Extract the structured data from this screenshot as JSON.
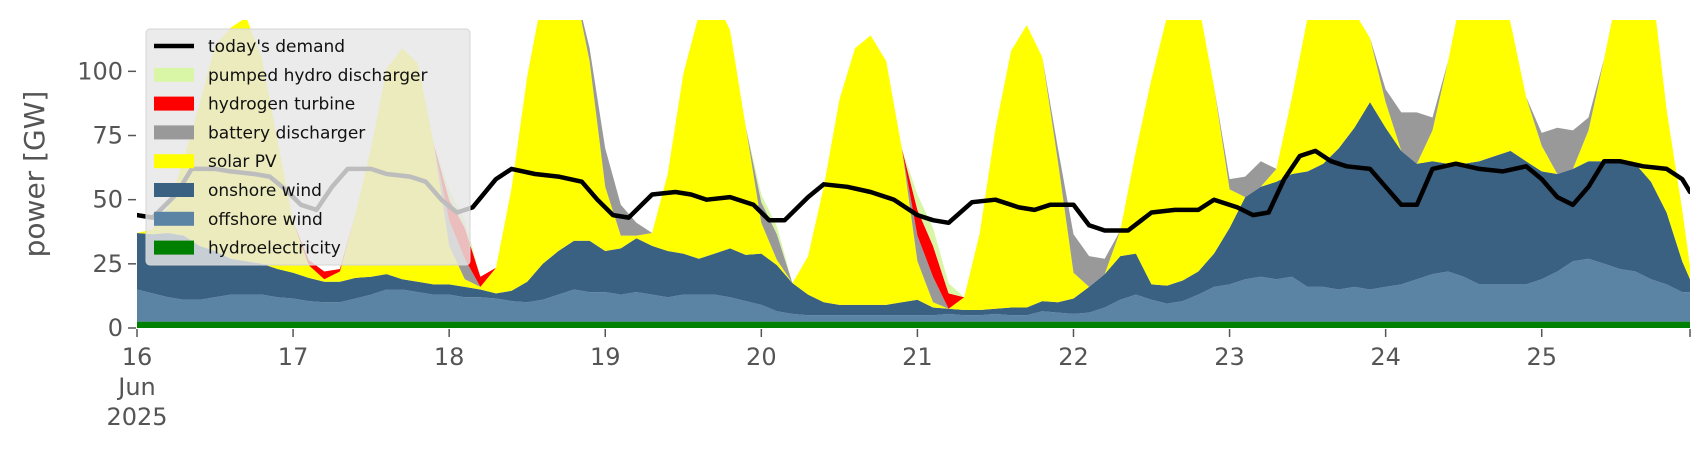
{
  "chart_data": {
    "type": "area",
    "ylabel": "power [GW]",
    "ylim": [
      0,
      120
    ],
    "yticks": [
      0,
      25,
      50,
      75,
      100
    ],
    "xlim": [
      0,
      9.95
    ],
    "x_unit": "days after 2025-06-16 00:00",
    "x_ticks": [
      {
        "pos": 0,
        "lines": [
          "16",
          "Jun",
          "2025"
        ]
      },
      {
        "pos": 1,
        "lines": [
          "17"
        ]
      },
      {
        "pos": 2,
        "lines": [
          "18"
        ]
      },
      {
        "pos": 3,
        "lines": [
          "19"
        ]
      },
      {
        "pos": 4,
        "lines": [
          "20"
        ]
      },
      {
        "pos": 5,
        "lines": [
          "21"
        ]
      },
      {
        "pos": 6,
        "lines": [
          "22"
        ]
      },
      {
        "pos": 7,
        "lines": [
          "23"
        ]
      },
      {
        "pos": 8,
        "lines": [
          "24"
        ]
      },
      {
        "pos": 9,
        "lines": [
          "25"
        ]
      }
    ],
    "grid": false,
    "legend_position": "top-left",
    "legend": [
      {
        "label": "today's demand",
        "kind": "line",
        "color": "#000000"
      },
      {
        "label": "pumped hydro discharger",
        "kind": "patch",
        "color": "#d9f5a6"
      },
      {
        "label": "hydrogen turbine",
        "kind": "patch",
        "color": "#ff0000"
      },
      {
        "label": "battery discharger",
        "kind": "patch",
        "color": "#999999"
      },
      {
        "label": "solar PV",
        "kind": "patch",
        "color": "#ffff00"
      },
      {
        "label": "onshore wind",
        "kind": "patch",
        "color": "#3b6182"
      },
      {
        "label": "offshore wind",
        "kind": "patch",
        "color": "#5b83a3"
      },
      {
        "label": "hydroelectricity",
        "kind": "patch",
        "color": "#008000"
      }
    ],
    "stack_order": [
      "hydroelectricity",
      "offshore wind",
      "onshore wind",
      "solar PV",
      "battery discharger",
      "hydrogen turbine",
      "pumped hydro discharger"
    ],
    "stack_colors": [
      "#008000",
      "#5b83a3",
      "#3b6182",
      "#ffff00",
      "#999999",
      "#ff0000",
      "#d9f5a6"
    ],
    "demand_series": {
      "name": "today's demand",
      "color": "#000000",
      "points": [
        [
          0,
          44
        ],
        [
          0.1,
          43
        ],
        [
          0.25,
          52
        ],
        [
          0.35,
          62
        ],
        [
          0.5,
          62
        ],
        [
          0.6,
          61
        ],
        [
          0.75,
          60
        ],
        [
          0.85,
          59
        ],
        [
          0.95,
          54
        ],
        [
          1.05,
          48
        ],
        [
          1.15,
          46
        ],
        [
          1.25,
          55
        ],
        [
          1.35,
          62
        ],
        [
          1.5,
          62
        ],
        [
          1.6,
          60
        ],
        [
          1.75,
          59
        ],
        [
          1.85,
          57
        ],
        [
          1.95,
          50
        ],
        [
          2.05,
          45
        ],
        [
          2.15,
          47
        ],
        [
          2.3,
          58
        ],
        [
          2.4,
          62
        ],
        [
          2.55,
          60
        ],
        [
          2.7,
          59
        ],
        [
          2.85,
          57
        ],
        [
          2.95,
          50
        ],
        [
          3.05,
          44
        ],
        [
          3.15,
          43
        ],
        [
          3.3,
          52
        ],
        [
          3.45,
          53
        ],
        [
          3.55,
          52
        ],
        [
          3.65,
          50
        ],
        [
          3.8,
          51
        ],
        [
          3.95,
          48
        ],
        [
          4.05,
          42
        ],
        [
          4.15,
          42
        ],
        [
          4.3,
          51
        ],
        [
          4.4,
          56
        ],
        [
          4.55,
          55
        ],
        [
          4.7,
          53
        ],
        [
          4.85,
          50
        ],
        [
          5.0,
          44
        ],
        [
          5.1,
          42
        ],
        [
          5.2,
          41
        ],
        [
          5.35,
          49
        ],
        [
          5.5,
          50
        ],
        [
          5.65,
          47
        ],
        [
          5.75,
          46
        ],
        [
          5.85,
          48
        ],
        [
          6.0,
          48
        ],
        [
          6.1,
          40
        ],
        [
          6.2,
          38
        ],
        [
          6.35,
          38
        ],
        [
          6.5,
          45
        ],
        [
          6.65,
          46
        ],
        [
          6.8,
          46
        ],
        [
          6.9,
          50
        ],
        [
          7.05,
          47
        ],
        [
          7.15,
          44
        ],
        [
          7.25,
          45
        ],
        [
          7.35,
          58
        ],
        [
          7.45,
          67
        ],
        [
          7.55,
          69
        ],
        [
          7.65,
          65
        ],
        [
          7.75,
          63
        ],
        [
          7.9,
          62
        ],
        [
          8.0,
          55
        ],
        [
          8.1,
          48
        ],
        [
          8.2,
          48
        ],
        [
          8.3,
          62
        ],
        [
          8.45,
          64
        ],
        [
          8.6,
          62
        ],
        [
          8.75,
          61
        ],
        [
          8.9,
          63
        ],
        [
          9.0,
          58
        ],
        [
          9.1,
          51
        ],
        [
          9.2,
          48
        ],
        [
          9.3,
          55
        ],
        [
          9.4,
          65
        ],
        [
          9.5,
          65
        ],
        [
          9.65,
          63
        ],
        [
          9.8,
          62
        ],
        [
          9.9,
          58
        ],
        [
          9.95,
          53
        ]
      ]
    },
    "stack_series": {
      "x": [
        0,
        0.1,
        0.2,
        0.3,
        0.4,
        0.5,
        0.6,
        0.7,
        0.8,
        0.9,
        1.0,
        1.1,
        1.2,
        1.3,
        1.4,
        1.5,
        1.6,
        1.7,
        1.8,
        1.9,
        2.0,
        2.1,
        2.2,
        2.3,
        2.4,
        2.5,
        2.6,
        2.7,
        2.8,
        2.9,
        3.0,
        3.1,
        3.2,
        3.3,
        3.4,
        3.5,
        3.6,
        3.7,
        3.8,
        3.9,
        4.0,
        4.1,
        4.2,
        4.3,
        4.4,
        4.5,
        4.6,
        4.7,
        4.8,
        4.9,
        5.0,
        5.1,
        5.2,
        5.3,
        5.4,
        5.5,
        5.6,
        5.7,
        5.8,
        5.9,
        6.0,
        6.1,
        6.2,
        6.3,
        6.4,
        6.5,
        6.6,
        6.7,
        6.8,
        6.9,
        7.0,
        7.1,
        7.2,
        7.3,
        7.4,
        7.5,
        7.6,
        7.7,
        7.8,
        7.9,
        8.0,
        8.1,
        8.2,
        8.3,
        8.4,
        8.5,
        8.6,
        8.7,
        8.8,
        8.9,
        9.0,
        9.1,
        9.2,
        9.3,
        9.4,
        9.5,
        9.6,
        9.7,
        9.8,
        9.9,
        9.95
      ],
      "hydroelectricity": [
        2.5,
        2.5,
        2.5,
        2.5,
        2.5,
        2.5,
        2.5,
        2.5,
        2.5,
        2.5,
        2.5,
        2.5,
        2.5,
        2.5,
        2.5,
        2.5,
        2.5,
        2.5,
        2.5,
        2.5,
        2.5,
        2.5,
        2.5,
        2.5,
        2.5,
        2.5,
        2.5,
        2.5,
        2.5,
        2.5,
        2.5,
        2.5,
        2.5,
        2.5,
        2.5,
        2.5,
        2.5,
        2.5,
        2.5,
        2.5,
        2.5,
        2.5,
        2.5,
        2.5,
        2.5,
        2.5,
        2.5,
        2.5,
        2.5,
        2.5,
        2.5,
        2.5,
        2.5,
        2.5,
        2.5,
        2.5,
        2.5,
        2.5,
        2.5,
        2.5,
        2.5,
        2.5,
        2.5,
        2.5,
        2.5,
        2.5,
        2.5,
        2.5,
        2.5,
        2.5,
        2.5,
        2.5,
        2.5,
        2.5,
        2.5,
        2.5,
        2.5,
        2.5,
        2.5,
        2.5,
        2.5,
        2.5,
        2.5,
        2.5,
        2.5,
        2.5,
        2.5,
        2.5,
        2.5,
        2.5,
        2.5,
        2.5,
        2.5,
        2.5,
        2.5,
        2.5,
        2.5,
        2.5,
        2.5,
        2.5,
        2.5
      ],
      "offshore wind": [
        12.5,
        11,
        9.5,
        8.5,
        8.5,
        9.5,
        10.5,
        10.5,
        10.5,
        9.5,
        9,
        8,
        7.5,
        7.5,
        9,
        10.5,
        12.5,
        12.5,
        11.5,
        10.5,
        10.5,
        9.5,
        9.5,
        9,
        8,
        7.5,
        8.5,
        10.5,
        12.5,
        11.5,
        11.5,
        10.5,
        11.5,
        10.5,
        9.5,
        10.5,
        10.5,
        10.5,
        9.5,
        8,
        6.5,
        4,
        3,
        2.5,
        2.5,
        2.5,
        2.5,
        2.5,
        2.5,
        2.5,
        2.5,
        2.5,
        3,
        2.5,
        2.5,
        3,
        2.5,
        2.5,
        4,
        3.5,
        3,
        3.5,
        5.5,
        8.5,
        10.5,
        8.5,
        7,
        8,
        10.5,
        13.5,
        14.5,
        16.5,
        17.5,
        16.5,
        17.5,
        13.5,
        13.5,
        12.5,
        13.5,
        12.5,
        13.5,
        14.5,
        16.5,
        18.5,
        19.5,
        17.5,
        14.5,
        14.5,
        14.5,
        14.5,
        16.5,
        19.5,
        23.5,
        24.5,
        22.5,
        20.5,
        19.5,
        16.5,
        14.5,
        11.5,
        11.5
      ],
      "onshore wind": [
        22,
        23,
        25,
        25,
        21,
        18,
        14,
        13,
        12,
        11,
        10,
        9,
        8,
        8,
        8,
        7,
        6,
        4,
        4,
        4,
        4,
        4,
        3,
        2,
        4,
        8,
        14,
        17,
        19,
        20,
        16,
        18,
        21,
        19,
        18,
        16,
        14,
        16,
        19,
        18,
        20,
        18,
        12,
        8,
        5,
        4,
        4,
        4,
        4,
        5,
        6,
        3,
        2,
        2,
        2,
        2,
        3,
        3,
        4,
        4,
        6,
        10,
        13,
        17,
        16,
        6,
        7,
        8,
        9,
        13,
        22,
        32,
        35,
        38,
        40,
        45,
        48,
        55,
        62,
        73,
        62,
        52,
        45,
        44,
        42,
        44,
        48,
        50,
        52,
        48,
        42,
        38,
        36,
        38,
        40,
        42,
        42,
        38,
        28,
        12,
        5
      ],
      "solar PV": [
        0,
        2,
        10,
        30,
        55,
        80,
        90,
        95,
        80,
        50,
        20,
        5,
        1,
        4,
        25,
        50,
        80,
        90,
        85,
        55,
        15,
        3,
        1,
        10,
        40,
        80,
        105,
        110,
        100,
        70,
        25,
        5,
        1,
        5,
        30,
        70,
        95,
        100,
        85,
        50,
        12,
        2,
        0,
        15,
        45,
        80,
        100,
        105,
        95,
        60,
        15,
        2,
        0,
        5,
        30,
        70,
        100,
        110,
        95,
        55,
        10,
        0,
        0,
        10,
        40,
        80,
        105,
        115,
        105,
        65,
        15,
        0,
        0,
        5,
        30,
        60,
        70,
        55,
        45,
        25,
        10,
        0,
        0,
        12,
        40,
        70,
        85,
        80,
        50,
        25,
        10,
        0,
        0,
        12,
        40,
        70,
        85,
        80,
        40,
        20,
        5
      ],
      "battery discharger": [
        0,
        0,
        0,
        0,
        0,
        0,
        0,
        0,
        0,
        0,
        0,
        0,
        0,
        0,
        0,
        0,
        0,
        0,
        0,
        0,
        10,
        8,
        0,
        0,
        0,
        0,
        0,
        0,
        0,
        5,
        15,
        12,
        5,
        0,
        0,
        0,
        0,
        0,
        0,
        0,
        8,
        10,
        0,
        0,
        0,
        0,
        0,
        0,
        0,
        0,
        10,
        10,
        0,
        0,
        0,
        0,
        0,
        0,
        0,
        5,
        15,
        12,
        6,
        0,
        0,
        0,
        0,
        0,
        0,
        0,
        4,
        8,
        10,
        0,
        0,
        0,
        8,
        20,
        0,
        0,
        5,
        15,
        20,
        5,
        0,
        0,
        0,
        0,
        0,
        0,
        5,
        18,
        15,
        5,
        0,
        0,
        0,
        0,
        0,
        0,
        0
      ],
      "hydrogen turbine": [
        0,
        0,
        0,
        0,
        0,
        0,
        0,
        0,
        0,
        0,
        0,
        2,
        3,
        1,
        0,
        0,
        0,
        0,
        0,
        0,
        8,
        12,
        4,
        0,
        0,
        0,
        0,
        0,
        0,
        0,
        0,
        0,
        0,
        0,
        0,
        0,
        0,
        0,
        0,
        0,
        0,
        0,
        0,
        0,
        0,
        0,
        0,
        0,
        0,
        0,
        10,
        12,
        6,
        0,
        0,
        0,
        0,
        0,
        0,
        0,
        0,
        0,
        0,
        0,
        0,
        0,
        0,
        0,
        0,
        0,
        0,
        0,
        0,
        0,
        0,
        0,
        0,
        0,
        0,
        0,
        0,
        0,
        0,
        0,
        0,
        0,
        0,
        0,
        0,
        0,
        0,
        0,
        0,
        0,
        0,
        0,
        0,
        0,
        0,
        0,
        0
      ],
      "pumped hydro discharger": [
        0,
        0,
        0,
        0,
        0,
        0,
        0,
        0,
        0,
        0,
        0,
        0,
        0,
        0,
        0,
        0,
        0,
        0,
        0,
        0,
        4,
        3,
        0,
        0,
        0,
        0,
        0,
        0,
        0,
        0,
        0,
        0,
        0,
        0,
        0,
        0,
        0,
        0,
        0,
        0,
        3,
        3,
        0,
        0,
        0,
        0,
        0,
        0,
        0,
        0,
        6,
        7,
        4,
        0,
        0,
        0,
        0,
        0,
        0,
        0,
        0,
        0,
        0,
        0,
        0,
        0,
        0,
        0,
        0,
        0,
        0,
        0,
        0,
        0,
        0,
        0,
        0,
        0,
        0,
        0,
        0,
        0,
        0,
        0,
        0,
        0,
        0,
        0,
        0,
        0,
        0,
        0,
        0,
        0,
        0,
        0,
        0,
        0,
        0,
        0,
        0
      ]
    }
  }
}
